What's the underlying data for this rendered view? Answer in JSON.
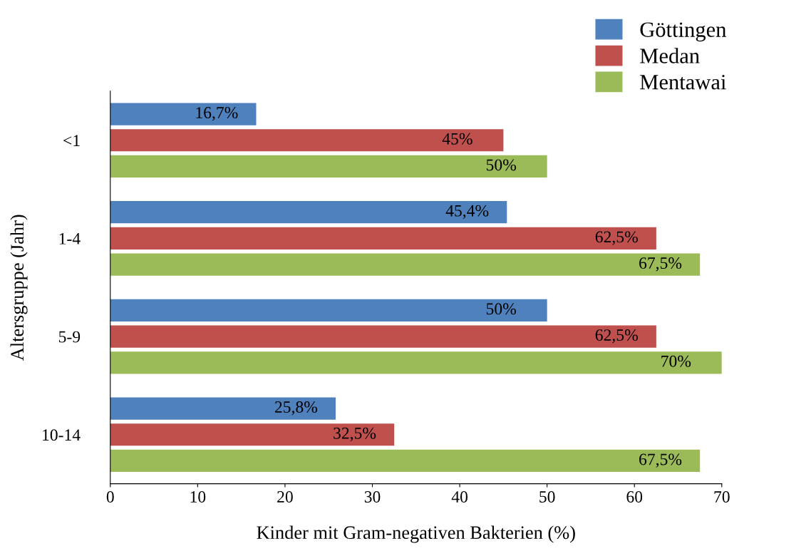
{
  "chart_data": {
    "type": "bar",
    "orientation": "horizontal",
    "xlabel": "Kinder mit Gram-negativen Bakterien (%)",
    "ylabel": "Altersgruppe (Jahr)",
    "categories": [
      "<1",
      "1-4",
      "5-9",
      "10-14"
    ],
    "series": [
      {
        "name": "Göttingen",
        "color": "#4f81bd",
        "values": [
          16.7,
          45.4,
          50,
          25.8
        ],
        "value_labels": [
          "16,7%",
          "45,4%",
          "50%",
          "25,8%"
        ]
      },
      {
        "name": "Medan",
        "color": "#c0504d",
        "values": [
          45,
          62.5,
          62.5,
          32.5
        ],
        "value_labels": [
          "45%",
          "62,5%",
          "62,5%",
          "32,5%"
        ]
      },
      {
        "name": "Mentawai",
        "color": "#9bbb59",
        "values": [
          50,
          67.5,
          70,
          67.5
        ],
        "value_labels": [
          "50%",
          "67,5%",
          "70%",
          "67,5%"
        ]
      }
    ],
    "xlim": [
      0,
      70
    ],
    "xticks": [
      0,
      10,
      20,
      30,
      40,
      50,
      60,
      70
    ],
    "grid": false,
    "legend": "top right"
  }
}
